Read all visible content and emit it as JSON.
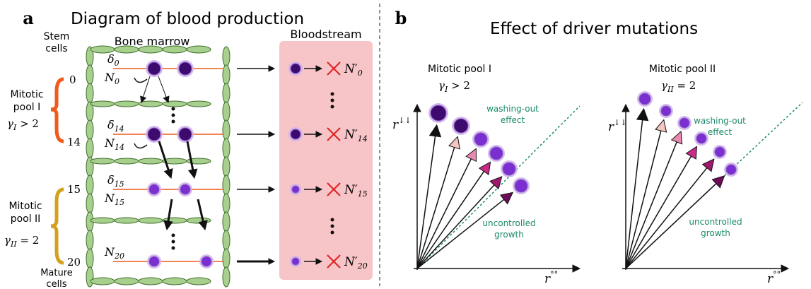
{
  "panel_a": {
    "label": "a",
    "title": "Diagram of blood production",
    "bone_marrow": "Bone marrow",
    "bloodstream": "Bloodstream",
    "stem_cells": [
      "Stem",
      "cells"
    ],
    "mature_cells": [
      "Mature",
      "cells"
    ],
    "pool_1": {
      "name": [
        "Mitotic",
        "pool I"
      ],
      "gamma": {
        "symbol": "γ",
        "sub": "I",
        "relation": " > 2"
      },
      "start": "0",
      "end": "14"
    },
    "pool_2": {
      "name": [
        "Mitotic",
        "pool II"
      ],
      "gamma": {
        "symbol": "γ",
        "sub": "II",
        "relation": " = 2"
      },
      "start": "15",
      "end": "20"
    },
    "rows": [
      {
        "delta": {
          "symbol": "δ",
          "sub": "0"
        },
        "n": {
          "symbol": "N",
          "sub": "0"
        },
        "output": {
          "symbol": "N′",
          "sub": "0"
        }
      },
      {
        "delta": {
          "symbol": "δ",
          "sub": "14"
        },
        "n": {
          "symbol": "N",
          "sub": "14"
        },
        "output": {
          "symbol": "N′",
          "sub": "14"
        }
      },
      {
        "delta": {
          "symbol": "δ",
          "sub": "15"
        },
        "n": {
          "symbol": "N",
          "sub": "15"
        },
        "output": {
          "symbol": "N′",
          "sub": "15"
        }
      },
      {
        "n": {
          "symbol": "N",
          "sub": "20"
        },
        "output": {
          "symbol": "N′",
          "sub": "20"
        }
      }
    ]
  },
  "panel_b": {
    "label": "b",
    "title": "Effect of driver mutations",
    "plots": [
      {
        "name": "Mitotic pool I",
        "gamma": {
          "symbol": "γ",
          "sub": "I",
          "relation": " > 2"
        },
        "washing_out": [
          "washing-out",
          "effect"
        ],
        "uncontrolled": [
          "uncontrolled",
          "growth"
        ],
        "y_label": {
          "symbol": "r",
          "sup": "↓↓"
        },
        "x_label": {
          "symbol": "r",
          "sup": "°°"
        }
      },
      {
        "name": "Mitotic pool II",
        "gamma": {
          "symbol": "γ",
          "sub": "II",
          "relation": " = 2"
        },
        "washing_out": [
          "washing-out",
          "effect"
        ],
        "uncontrolled": [
          "uncontrolled",
          "growth"
        ],
        "y_label": {
          "symbol": "r",
          "sup": "↓↓"
        },
        "x_label": {
          "symbol": "r",
          "sup": "°°"
        }
      }
    ]
  }
}
